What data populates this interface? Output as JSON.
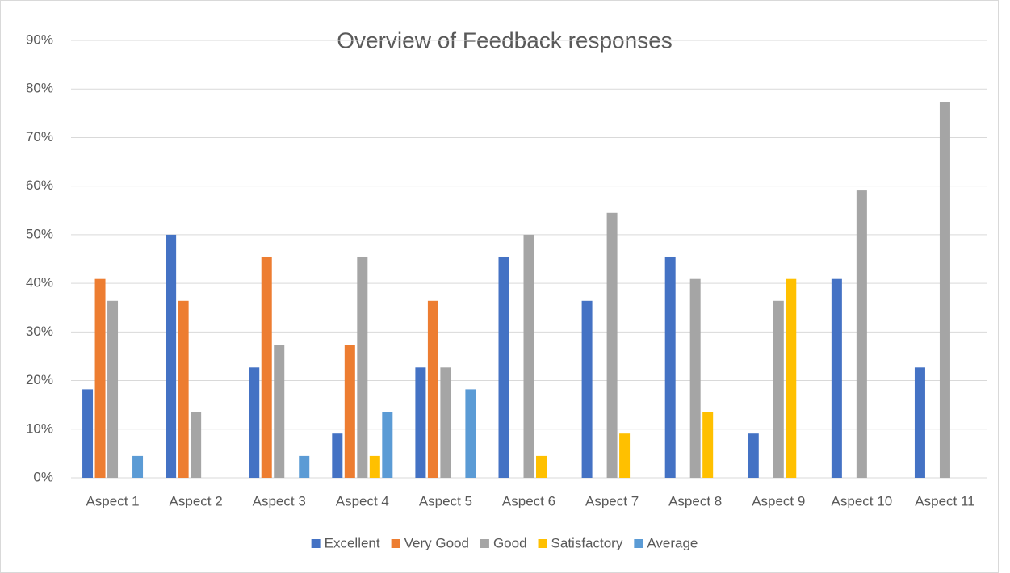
{
  "chart_data": {
    "type": "bar",
    "title": "Overview of Feedback responses",
    "categories": [
      "Aspect 1",
      "Aspect 2",
      "Aspect 3",
      "Aspect 4",
      "Aspect 5",
      "Aspect 6",
      "Aspect 7",
      "Aspect 8",
      "Aspect 9",
      "Aspect 10",
      "Aspect 11"
    ],
    "series": [
      {
        "name": "Excellent",
        "color": "#4472c4",
        "values": [
          18.2,
          50,
          22.7,
          9.1,
          22.7,
          45.5,
          36.4,
          45.5,
          9.1,
          40.9,
          22.7
        ]
      },
      {
        "name": "Very Good",
        "color": "#ed7d31",
        "values": [
          40.9,
          36.4,
          45.5,
          27.3,
          36.4,
          0,
          0,
          0,
          0,
          0,
          0
        ]
      },
      {
        "name": "Good",
        "color": "#a5a5a5",
        "values": [
          36.4,
          13.6,
          27.3,
          45.5,
          22.7,
          50,
          54.5,
          40.9,
          36.4,
          59.1,
          77.3
        ]
      },
      {
        "name": "Satisfactory",
        "color": "#ffc000",
        "values": [
          0,
          0,
          0,
          4.5,
          0,
          4.5,
          9.1,
          13.6,
          40.9,
          0,
          0
        ]
      },
      {
        "name": "Average",
        "color": "#5b9bd5",
        "values": [
          4.5,
          0,
          4.5,
          13.6,
          18.2,
          0,
          0,
          0,
          0,
          0,
          0
        ]
      }
    ],
    "ylim": [
      0,
      90
    ],
    "yticks": [
      {
        "value": 0,
        "label": "0%"
      },
      {
        "value": 10,
        "label": "10%"
      },
      {
        "value": 20,
        "label": "20%"
      },
      {
        "value": 30,
        "label": "30%"
      },
      {
        "value": 40,
        "label": "40%"
      },
      {
        "value": 50,
        "label": "50%"
      },
      {
        "value": 60,
        "label": "60%"
      },
      {
        "value": 70,
        "label": "70%"
      },
      {
        "value": 80,
        "label": "80%"
      },
      {
        "value": 90,
        "label": "90%"
      }
    ],
    "grid": true,
    "legend": "bottom"
  }
}
